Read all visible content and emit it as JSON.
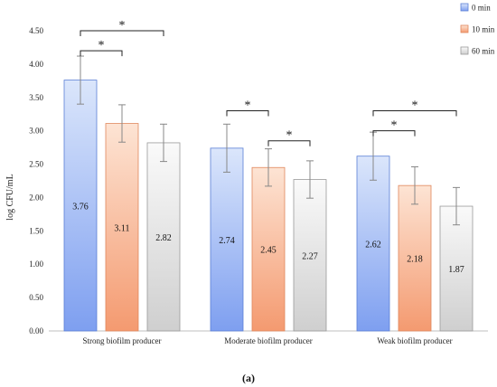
{
  "chart_data": {
    "type": "bar",
    "categories": [
      "Strong biofilm producer",
      "Moderate biofilm producer",
      "Weak biofilm producer"
    ],
    "series": [
      {
        "name": "0 min",
        "values": [
          3.76,
          2.74,
          2.62
        ],
        "errors": [
          0.36,
          0.36,
          0.36
        ],
        "color_top": "#dbe6fb",
        "color_bottom": "#7e9ff0",
        "stroke": "#5b7fd6"
      },
      {
        "name": "10 min",
        "values": [
          3.11,
          2.45,
          2.18
        ],
        "errors": [
          0.28,
          0.28,
          0.28
        ],
        "color_top": "#fde4d4",
        "color_bottom": "#f49a70",
        "stroke": "#e0875c"
      },
      {
        "name": "60 min",
        "values": [
          2.82,
          2.27,
          1.87
        ],
        "errors": [
          0.28,
          0.28,
          0.28
        ],
        "color_top": "#fafafa",
        "color_bottom": "#cfcfcf",
        "stroke": "#9a9a9a"
      }
    ],
    "value_labels": [
      [
        "3.76",
        "2.74",
        "2.62"
      ],
      [
        "3.11",
        "2.45",
        "2.18"
      ],
      [
        "2.82",
        "2.27",
        "1.87"
      ]
    ],
    "ylabel": "log CFU/mL",
    "ylim": [
      0,
      4.5
    ],
    "yticks": [
      "0.00",
      "0.50",
      "1.00",
      "1.50",
      "2.00",
      "2.50",
      "3.00",
      "3.50",
      "4.00",
      "4.50"
    ],
    "legend_position": "top-right",
    "significance": [
      {
        "category": 0,
        "from": 0,
        "to": 2,
        "label": "*",
        "level": 4.5
      },
      {
        "category": 0,
        "from": 0,
        "to": 1,
        "label": "*",
        "level": 4.2
      },
      {
        "category": 1,
        "from": 0,
        "to": 1,
        "label": "*",
        "level": 3.3
      },
      {
        "category": 1,
        "from": 1,
        "to": 2,
        "label": "*",
        "level": 2.85
      },
      {
        "category": 2,
        "from": 0,
        "to": 2,
        "label": "*",
        "level": 3.3
      },
      {
        "category": 2,
        "from": 0,
        "to": 1,
        "label": "*",
        "level": 3.0
      }
    ],
    "caption": "(a)"
  }
}
